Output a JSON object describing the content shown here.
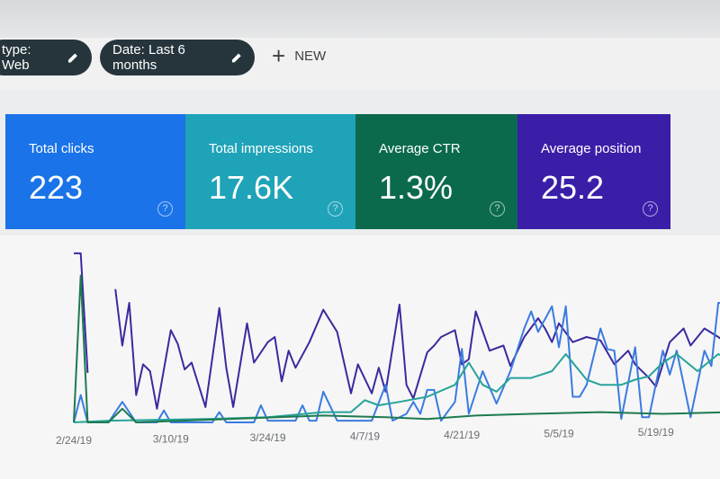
{
  "filters": {
    "type_chip": "type: Web",
    "date_chip": "Date: Last 6 months",
    "new_button": "NEW",
    "icons": {
      "edit": "pencil-icon",
      "add": "plus-icon"
    }
  },
  "metrics": [
    {
      "label": "Total clicks",
      "value": "223",
      "color": "#1a73e8",
      "help": "?"
    },
    {
      "label": "Total impressions",
      "value": "17.6K",
      "color": "#1fa3b8",
      "help": "?"
    },
    {
      "label": "Average CTR",
      "value": "1.3%",
      "color": "#0b6a4e",
      "help": "?"
    },
    {
      "label": "Average position",
      "value": "25.2",
      "color": "#3b1ea8",
      "help": "?"
    }
  ],
  "chart_data": {
    "type": "line",
    "x_tick_labels": [
      "2/24/19",
      "3/10/19",
      "3/24/19",
      "4/7/19",
      "4/21/19",
      "5/5/19",
      "5/19/19"
    ],
    "x_ticks": [
      "2019-02-24",
      "2019-03-10",
      "2019-03-24",
      "2019-04-07",
      "2019-04-21",
      "2019-05-05",
      "2019-05-19"
    ],
    "ylim": [
      0,
      100
    ],
    "y_axis_labels_shown": false,
    "grid": false,
    "series": [
      {
        "metric": "Average position",
        "color": "#3b2a9e",
        "points": [
          [
            "2019-02-24",
            99
          ],
          [
            "2019-02-25",
            99
          ],
          [
            "2019-02-26",
            29
          ],
          null,
          [
            "2019-03-02",
            78
          ],
          [
            "2019-03-03",
            45
          ],
          [
            "2019-03-04",
            70
          ],
          [
            "2019-03-05",
            16
          ],
          [
            "2019-03-06",
            34
          ],
          [
            "2019-03-07",
            30
          ],
          [
            "2019-03-08",
            8
          ],
          [
            "2019-03-10",
            54
          ],
          [
            "2019-03-11",
            46
          ],
          [
            "2019-03-12",
            31
          ],
          [
            "2019-03-13",
            35
          ],
          [
            "2019-03-15",
            9
          ],
          [
            "2019-03-17",
            67
          ],
          [
            "2019-03-18",
            32
          ],
          [
            "2019-03-19",
            9
          ],
          [
            "2019-03-21",
            58
          ],
          [
            "2019-03-22",
            35
          ],
          [
            "2019-03-24",
            47
          ],
          [
            "2019-03-25",
            50
          ],
          [
            "2019-03-26",
            24
          ],
          [
            "2019-03-27",
            42
          ],
          [
            "2019-03-28",
            32
          ],
          [
            "2019-03-30",
            47
          ],
          [
            "2019-04-01",
            66
          ],
          [
            "2019-04-03",
            53
          ],
          [
            "2019-04-05",
            17
          ],
          [
            "2019-04-06",
            34
          ],
          [
            "2019-04-08",
            17
          ],
          [
            "2019-04-09",
            32
          ],
          [
            "2019-04-10",
            18
          ],
          [
            "2019-04-12",
            69
          ],
          [
            "2019-04-13",
            22
          ],
          [
            "2019-04-14",
            14
          ],
          [
            "2019-04-16",
            41
          ],
          [
            "2019-04-17",
            45
          ],
          [
            "2019-04-18",
            50
          ],
          [
            "2019-04-20",
            54
          ],
          [
            "2019-04-21",
            34
          ],
          [
            "2019-04-22",
            37
          ],
          [
            "2019-04-23",
            65
          ],
          [
            "2019-04-25",
            42
          ],
          [
            "2019-04-27",
            45
          ],
          [
            "2019-04-28",
            33
          ],
          [
            "2019-04-30",
            50
          ],
          [
            "2019-05-02",
            61
          ],
          [
            "2019-05-03",
            55
          ],
          [
            "2019-05-04",
            47
          ],
          [
            "2019-05-05",
            58
          ],
          [
            "2019-05-07",
            47
          ],
          [
            "2019-05-09",
            50
          ],
          [
            "2019-05-11",
            48
          ],
          [
            "2019-05-13",
            34
          ],
          [
            "2019-05-15",
            42
          ],
          [
            "2019-05-16",
            34
          ],
          [
            "2019-05-18",
            26
          ],
          [
            "2019-05-19",
            21
          ],
          [
            "2019-05-21",
            47
          ],
          [
            "2019-05-23",
            55
          ],
          [
            "2019-05-24",
            45
          ],
          [
            "2019-05-26",
            55
          ],
          [
            "2019-05-28",
            50
          ],
          [
            "2019-05-29",
            47
          ]
        ]
      },
      {
        "metric": "Total clicks",
        "color": "#3a7be0",
        "points": [
          [
            "2019-02-24",
            0
          ],
          [
            "2019-02-25",
            16
          ],
          [
            "2019-02-26",
            0
          ],
          [
            "2019-03-01",
            0
          ],
          [
            "2019-03-03",
            12
          ],
          [
            "2019-03-05",
            0
          ],
          [
            "2019-03-08",
            0
          ],
          [
            "2019-03-09",
            7
          ],
          [
            "2019-03-10",
            0
          ],
          [
            "2019-03-16",
            0
          ],
          [
            "2019-03-17",
            6
          ],
          [
            "2019-03-18",
            0
          ],
          [
            "2019-03-22",
            0
          ],
          [
            "2019-03-23",
            10
          ],
          [
            "2019-03-24",
            1
          ],
          [
            "2019-03-28",
            1
          ],
          [
            "2019-03-29",
            10
          ],
          [
            "2019-03-30",
            1
          ],
          [
            "2019-03-31",
            1
          ],
          [
            "2019-04-01",
            18
          ],
          [
            "2019-04-03",
            1
          ],
          [
            "2019-04-08",
            1
          ],
          [
            "2019-04-10",
            22
          ],
          [
            "2019-04-11",
            1
          ],
          [
            "2019-04-13",
            5
          ],
          [
            "2019-04-14",
            12
          ],
          [
            "2019-04-15",
            5
          ],
          [
            "2019-04-16",
            19
          ],
          [
            "2019-04-17",
            19
          ],
          [
            "2019-04-18",
            1
          ],
          [
            "2019-04-20",
            12
          ],
          [
            "2019-04-21",
            43
          ],
          [
            "2019-04-22",
            5
          ],
          [
            "2019-04-24",
            30
          ],
          [
            "2019-04-26",
            11
          ],
          [
            "2019-04-28",
            30
          ],
          [
            "2019-04-30",
            55
          ],
          [
            "2019-05-01",
            65
          ],
          [
            "2019-05-02",
            53
          ],
          [
            "2019-05-04",
            68
          ],
          [
            "2019-05-05",
            44
          ],
          [
            "2019-05-06",
            68
          ],
          [
            "2019-05-07",
            15
          ],
          [
            "2019-05-08",
            15
          ],
          [
            "2019-05-09",
            22
          ],
          [
            "2019-05-11",
            55
          ],
          [
            "2019-05-12",
            43
          ],
          [
            "2019-05-13",
            42
          ],
          [
            "2019-05-14",
            2
          ],
          [
            "2019-05-16",
            44
          ],
          [
            "2019-05-17",
            3
          ],
          [
            "2019-05-18",
            3
          ],
          [
            "2019-05-20",
            42
          ],
          [
            "2019-05-21",
            28
          ],
          [
            "2019-05-22",
            42
          ],
          [
            "2019-05-24",
            3
          ],
          [
            "2019-05-26",
            42
          ],
          [
            "2019-05-27",
            33
          ],
          [
            "2019-05-28",
            70
          ],
          [
            "2019-05-29",
            70
          ]
        ]
      },
      {
        "metric": "Total impressions",
        "color": "#27a39a",
        "points": [
          [
            "2019-02-24",
            0
          ],
          [
            "2019-03-01",
            1
          ],
          [
            "2019-03-15",
            2
          ],
          [
            "2019-03-24",
            3
          ],
          [
            "2019-04-01",
            6
          ],
          [
            "2019-04-05",
            6
          ],
          [
            "2019-04-07",
            13
          ],
          [
            "2019-04-09",
            10
          ],
          [
            "2019-04-12",
            12
          ],
          [
            "2019-04-16",
            15
          ],
          [
            "2019-04-20",
            22
          ],
          [
            "2019-04-22",
            35
          ],
          [
            "2019-04-24",
            22
          ],
          [
            "2019-04-26",
            18
          ],
          [
            "2019-04-28",
            26
          ],
          [
            "2019-05-01",
            26
          ],
          [
            "2019-05-04",
            30
          ],
          [
            "2019-05-06",
            40
          ],
          [
            "2019-05-09",
            25
          ],
          [
            "2019-05-11",
            22
          ],
          [
            "2019-05-14",
            22
          ],
          [
            "2019-05-16",
            25
          ],
          [
            "2019-05-18",
            27
          ],
          [
            "2019-05-20",
            35
          ],
          [
            "2019-05-22",
            40
          ],
          [
            "2019-05-25",
            30
          ],
          [
            "2019-05-28",
            40
          ],
          [
            "2019-05-30",
            36
          ]
        ]
      },
      {
        "metric": "Average CTR",
        "color": "#1e7a50",
        "points": [
          [
            "2019-02-24",
            0
          ],
          [
            "2019-02-25",
            86
          ],
          [
            "2019-02-26",
            0
          ],
          [
            "2019-03-01",
            0
          ],
          [
            "2019-03-03",
            8
          ],
          [
            "2019-03-05",
            0
          ],
          [
            "2019-04-01",
            4
          ],
          [
            "2019-04-10",
            3
          ],
          [
            "2019-04-16",
            2
          ],
          [
            "2019-04-23",
            4
          ],
          [
            "2019-05-01",
            5
          ],
          [
            "2019-05-11",
            6
          ],
          [
            "2019-05-20",
            5
          ],
          [
            "2019-05-30",
            6
          ]
        ]
      }
    ]
  }
}
